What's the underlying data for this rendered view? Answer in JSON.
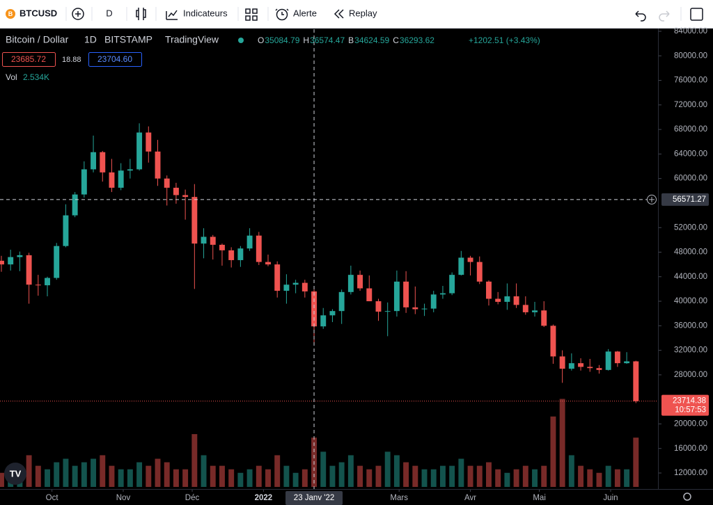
{
  "toolbar": {
    "symbol": "BTCUSD",
    "interval": "D",
    "indicators": "Indicateurs",
    "alert": "Alerte",
    "replay": "Replay"
  },
  "chart_data": {
    "type": "candlestick",
    "legend": {
      "title": "Bitcoin / Dollar",
      "interval": "1D",
      "exchange": "BITSTAMP",
      "source": "TradingView",
      "ohlc": [
        {
          "label": "O",
          "value": "35084.79"
        },
        {
          "label": "H",
          "value": "36574.47"
        },
        {
          "label": "B",
          "value": "34624.59"
        },
        {
          "label": "C",
          "value": "36293.62"
        }
      ],
      "change": "+1202.51 (+3.43%)",
      "bid": "23685.72",
      "spread": "18.88",
      "ask": "23704.60",
      "volume_label": "Vol",
      "volume_value": "2.534K"
    },
    "open": [
      46600,
      46000,
      47200,
      47500,
      42700,
      42600,
      43800,
      49000,
      54000,
      57400,
      61500,
      64300,
      61000,
      58500,
      61300,
      61500,
      67500,
      64400,
      60000,
      58500,
      57300,
      57000,
      49400,
      50500,
      49200,
      48300,
      46700,
      48600,
      50700,
      46400,
      46000,
      41700,
      42700,
      43000,
      41600,
      35900,
      37700,
      38400,
      41500,
      44300,
      42100,
      40000,
      38300,
      38400,
      43200,
      39000,
      38700,
      38800,
      41100,
      41300,
      44300,
      47100,
      46400,
      43200,
      40400,
      39900,
      40800,
      39400,
      38200,
      38500,
      36000,
      31000,
      29000,
      29900,
      29300,
      29100,
      28800,
      31800,
      29900,
      30200
    ],
    "high": [
      47400,
      48400,
      48100,
      47900,
      44300,
      44000,
      49500,
      55800,
      57800,
      62800,
      67000,
      64500,
      63200,
      62500,
      63200,
      69000,
      68500,
      66300,
      60500,
      59300,
      58200,
      59100,
      51900,
      50800,
      49400,
      48800,
      49000,
      51900,
      51300,
      47600,
      46500,
      44400,
      43500,
      43500,
      41900,
      38900,
      38700,
      41900,
      45800,
      45000,
      44200,
      40400,
      39800,
      45000,
      44900,
      42400,
      39600,
      41700,
      42500,
      44700,
      48200,
      47400,
      47300,
      43400,
      41500,
      42900,
      42900,
      40800,
      39900,
      40000,
      36200,
      32000,
      31500,
      30700,
      30600,
      29600,
      32200,
      31900,
      31700,
      30300
    ],
    "low": [
      44800,
      45000,
      44900,
      39600,
      40900,
      40800,
      43500,
      48800,
      53700,
      56900,
      61000,
      59500,
      57800,
      58100,
      60000,
      61300,
      62600,
      58800,
      55600,
      55900,
      53300,
      42000,
      47000,
      46800,
      45800,
      45500,
      45600,
      48200,
      45900,
      45700,
      40600,
      39600,
      41300,
      40600,
      33000,
      35500,
      36600,
      36300,
      41100,
      41700,
      40000,
      36800,
      34300,
      37500,
      38100,
      37900,
      37600,
      38200,
      40400,
      41000,
      44200,
      44200,
      42800,
      39300,
      39500,
      38600,
      38900,
      37800,
      37500,
      35800,
      29800,
      26700,
      28700,
      28700,
      28500,
      28200,
      28700,
      29300,
      29800,
      23400
    ],
    "close": [
      46000,
      47200,
      47500,
      42700,
      42600,
      43800,
      49000,
      54000,
      57400,
      61500,
      64300,
      61000,
      58500,
      61300,
      61500,
      67500,
      64400,
      60000,
      58500,
      57300,
      57000,
      49400,
      50500,
      49200,
      48300,
      46700,
      48600,
      50700,
      46400,
      46000,
      41700,
      42700,
      43000,
      41600,
      35900,
      37700,
      38400,
      41500,
      44300,
      42100,
      40000,
      38300,
      38400,
      43200,
      39000,
      38700,
      38800,
      41100,
      41300,
      44300,
      47100,
      46400,
      43200,
      40400,
      39900,
      40800,
      39400,
      38200,
      38500,
      36000,
      31000,
      29000,
      29900,
      29300,
      29100,
      28800,
      31800,
      29900,
      30200,
      23700
    ],
    "volume": [
      4,
      5,
      4,
      9,
      6,
      5,
      7,
      8,
      6,
      7,
      8,
      9,
      6,
      5,
      5,
      7,
      6,
      8,
      7,
      5,
      5,
      15,
      9,
      6,
      6,
      5,
      4,
      5,
      6,
      5,
      9,
      6,
      4,
      5,
      14,
      10,
      6,
      7,
      9,
      6,
      5,
      6,
      10,
      9,
      7,
      6,
      5,
      5,
      6,
      6,
      8,
      6,
      6,
      7,
      5,
      4,
      5,
      6,
      5,
      6,
      20,
      25,
      9,
      6,
      5,
      4,
      6,
      5,
      5,
      14
    ],
    "volume_lim": [
      0,
      130
    ],
    "up_color": "#26a69a",
    "down_color": "#ef5350",
    "xlim": [
      -0.15,
      71.4
    ],
    "xticks": [
      {
        "value": 5.5,
        "label": "Oct"
      },
      {
        "value": 13.25,
        "label": "Nov"
      },
      {
        "value": 20.75,
        "label": "Déc"
      },
      {
        "value": 28.5,
        "label": "2022"
      },
      {
        "value": 43.25,
        "label": "Mars"
      },
      {
        "value": 51,
        "label": "Avr"
      },
      {
        "value": 58.5,
        "label": "Mai"
      },
      {
        "value": 66.25,
        "label": "Juin"
      }
    ],
    "ylim": [
      9732,
      84340
    ],
    "yticks": [
      {
        "value": 84000,
        "label": "84000.00"
      },
      {
        "value": 80000,
        "label": "80000.00"
      },
      {
        "value": 76000,
        "label": "76000.00"
      },
      {
        "value": 72000,
        "label": "72000.00"
      },
      {
        "value": 68000,
        "label": "68000.00"
      },
      {
        "value": 64000,
        "label": "64000.00"
      },
      {
        "value": 60000,
        "label": "60000.00"
      },
      {
        "value": 52000,
        "label": "52000.00"
      },
      {
        "value": 48000,
        "label": "48000.00"
      },
      {
        "value": 44000,
        "label": "44000.00"
      },
      {
        "value": 40000,
        "label": "40000.00"
      },
      {
        "value": 36000,
        "label": "36000.00"
      },
      {
        "value": 32000,
        "label": "32000.00"
      },
      {
        "value": 28000,
        "label": "28000.00"
      },
      {
        "value": 20000,
        "label": "20000.00"
      },
      {
        "value": 16000,
        "label": "16000.00"
      },
      {
        "value": 12000,
        "label": "12000.00"
      }
    ],
    "crosshair": {
      "x": {
        "value": 34,
        "label": "23 Janv '22"
      },
      "price": 56571.27
    },
    "last_price": {
      "value": 23714.38,
      "countdown": "10:57:53"
    },
    "grid": false
  }
}
